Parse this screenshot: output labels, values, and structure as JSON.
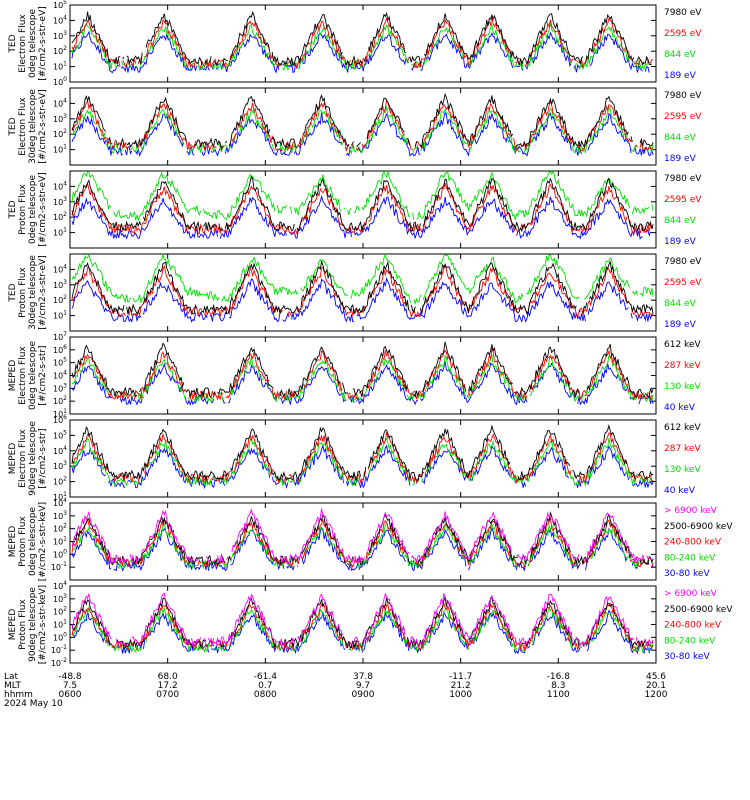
{
  "chart_data": {
    "type": "line",
    "title": "",
    "footer": {
      "row_labels": [
        "Lat",
        "MLT",
        "hhmm",
        "2024 May 10"
      ],
      "ticks": [
        {
          "lat": "-48.8",
          "mlt": "7.5",
          "hhmm": "0600"
        },
        {
          "lat": "68.0",
          "mlt": "17.2",
          "hhmm": "0700"
        },
        {
          "lat": "-61.4",
          "mlt": "0.7",
          "hhmm": "0800"
        },
        {
          "lat": "37.8",
          "mlt": "9.7",
          "hhmm": "0900"
        },
        {
          "lat": "-11.7",
          "mlt": "21.2",
          "hhmm": "1000"
        },
        {
          "lat": "-16.8",
          "mlt": "8.3",
          "hhmm": "1100"
        },
        {
          "lat": "45.6",
          "mlt": "20.1",
          "hhmm": "1200"
        }
      ]
    },
    "panels": [
      {
        "ylabel": [
          "TED",
          "Electron Flux",
          "0deg telescope",
          "[#/cm2-s-str-eV]"
        ],
        "ylog": [
          0,
          5
        ],
        "ytick_exponents": [
          0,
          1,
          2,
          3,
          4,
          5
        ],
        "channels": [
          {
            "label": "7980 eV",
            "color": "#000000"
          },
          {
            "label": "2595 eV",
            "color": "#ff0000"
          },
          {
            "label": "844 eV",
            "color": "#00e000"
          },
          {
            "label": "189 eV",
            "color": "#0000ff"
          }
        ]
      },
      {
        "ylabel": [
          "TED",
          "Electron Flux",
          "30deg telescope",
          "[#/cm2-s-str-eV]"
        ],
        "ylog": [
          0,
          5
        ],
        "ytick_exponents": [
          1,
          2,
          3,
          4
        ],
        "channels": [
          {
            "label": "7980 eV",
            "color": "#000000"
          },
          {
            "label": "2595 eV",
            "color": "#ff0000"
          },
          {
            "label": "844 eV",
            "color": "#00e000"
          },
          {
            "label": "189 eV",
            "color": "#0000ff"
          }
        ]
      },
      {
        "ylabel": [
          "TED",
          "Proton Flux",
          "0deg telescope",
          "[#/cm2-s-str-eV]"
        ],
        "ylog": [
          0,
          5
        ],
        "ytick_exponents": [
          1,
          2,
          3,
          4
        ],
        "channels": [
          {
            "label": "7980 eV",
            "color": "#000000"
          },
          {
            "label": "2595 eV",
            "color": "#ff0000"
          },
          {
            "label": "844 eV",
            "color": "#00e000"
          },
          {
            "label": "189 eV",
            "color": "#0000ff"
          }
        ]
      },
      {
        "ylabel": [
          "TED",
          "Proton Flux",
          "30deg telescope",
          "[#/cm2-s-str-eV]"
        ],
        "ylog": [
          0,
          5
        ],
        "ytick_exponents": [
          1,
          2,
          3,
          4
        ],
        "channels": [
          {
            "label": "7980 eV",
            "color": "#000000"
          },
          {
            "label": "2595 eV",
            "color": "#ff0000"
          },
          {
            "label": "844 eV",
            "color": "#00e000"
          },
          {
            "label": "189 eV",
            "color": "#0000ff"
          }
        ]
      },
      {
        "ylabel": [
          "MEPED",
          "Electron Flux",
          "0deg telescope",
          "[#/cm2-s-str]"
        ],
        "ylog": [
          1,
          7
        ],
        "ytick_exponents": [
          1,
          2,
          3,
          4,
          5,
          6,
          7
        ],
        "channels": [
          {
            "label": "612 keV",
            "color": "#000000"
          },
          {
            "label": "287 keV",
            "color": "#ff0000"
          },
          {
            "label": "130 keV",
            "color": "#00e000"
          },
          {
            "label": "40 keV",
            "color": "#0000ff"
          }
        ]
      },
      {
        "ylabel": [
          "MEPED",
          "Electron Flux",
          "90deg telescope",
          "[#/cm2-s-str]"
        ],
        "ylog": [
          1,
          6
        ],
        "ytick_exponents": [
          1,
          2,
          3,
          4,
          5,
          6
        ],
        "channels": [
          {
            "label": "612 keV",
            "color": "#000000"
          },
          {
            "label": "287 keV",
            "color": "#ff0000"
          },
          {
            "label": "130 keV",
            "color": "#00e000"
          },
          {
            "label": "40 keV",
            "color": "#0000ff"
          }
        ]
      },
      {
        "ylabel": [
          "MEPED",
          "Proton Flux",
          "0deg telescope",
          "[#/cm2-s-str-keV]"
        ],
        "ylog": [
          -2,
          4
        ],
        "ytick_exponents": [
          -1,
          0,
          1,
          2,
          3,
          4
        ],
        "channels": [
          {
            "label": "> 6900 keV",
            "color": "#ff00ff"
          },
          {
            "label": "2500-6900 keV",
            "color": "#000000"
          },
          {
            "label": "240-800 keV",
            "color": "#ff0000"
          },
          {
            "label": "80-240 keV",
            "color": "#00e000"
          },
          {
            "label": "30-80 keV",
            "color": "#0000ff"
          }
        ]
      },
      {
        "ylabel": [
          "MEPED",
          "Proton Flux",
          "90deg telescope",
          "[#/cm2-s-str-keV]"
        ],
        "ylog": [
          -2,
          4
        ],
        "ytick_exponents": [
          -2,
          -1,
          0,
          1,
          2,
          3,
          4
        ],
        "channels": [
          {
            "label": "> 6900 keV",
            "color": "#ff00ff"
          },
          {
            "label": "2500-6900 keV",
            "color": "#000000"
          },
          {
            "label": "240-800 keV",
            "color": "#ff0000"
          },
          {
            "label": "80-240 keV",
            "color": "#00e000"
          },
          {
            "label": "30-80 keV",
            "color": "#0000ff"
          }
        ]
      }
    ]
  }
}
